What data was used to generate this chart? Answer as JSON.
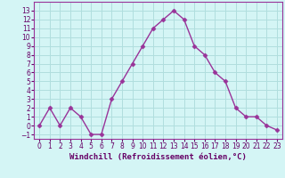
{
  "x": [
    0,
    1,
    2,
    3,
    4,
    5,
    6,
    7,
    8,
    9,
    10,
    11,
    12,
    13,
    14,
    15,
    16,
    17,
    18,
    19,
    20,
    21,
    22,
    23
  ],
  "y": [
    0,
    2,
    0,
    2,
    1,
    -1,
    -1,
    3,
    5,
    7,
    9,
    11,
    12,
    13,
    12,
    9,
    8,
    6,
    5,
    2,
    1,
    1,
    0,
    -0.5
  ],
  "line_color": "#993399",
  "marker": "D",
  "marker_size": 2.5,
  "bg_color": "#d4f5f5",
  "grid_color": "#b0dede",
  "xlabel": "Windchill (Refroidissement éolien,°C)",
  "xlabel_fontsize": 6.5,
  "ylim": [
    -1.5,
    14
  ],
  "xlim": [
    -0.5,
    23.5
  ],
  "yticks": [
    -1,
    0,
    1,
    2,
    3,
    4,
    5,
    6,
    7,
    8,
    9,
    10,
    11,
    12,
    13
  ],
  "xticks": [
    0,
    1,
    2,
    3,
    4,
    5,
    6,
    7,
    8,
    9,
    10,
    11,
    12,
    13,
    14,
    15,
    16,
    17,
    18,
    19,
    20,
    21,
    22,
    23
  ],
  "tick_labelsize": 5.5,
  "label_color": "#660066",
  "spine_color": "#993399"
}
